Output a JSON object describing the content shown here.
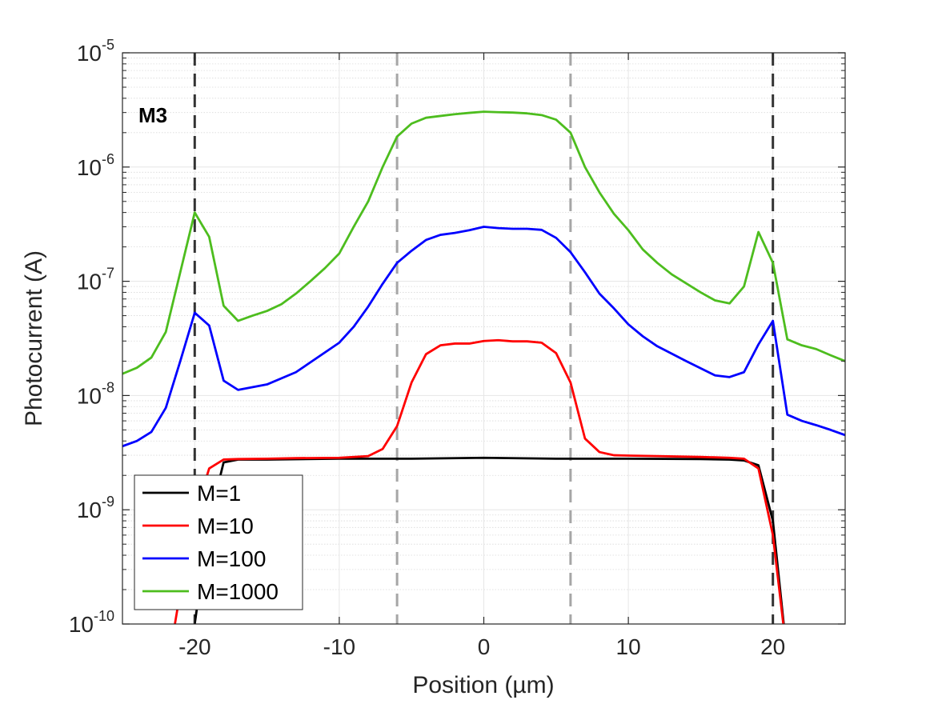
{
  "chart_data": {
    "type": "line",
    "panel_label": "M3",
    "xlabel": "Position (µm)",
    "ylabel": "Photocurrent (A)",
    "xlim": [
      -25,
      25
    ],
    "ylim": [
      1e-10,
      1e-05
    ],
    "yscale": "log",
    "grid": true,
    "legend_position": "bottom-left",
    "xticks": [
      -20,
      -10,
      0,
      10,
      20
    ],
    "xtick_labels": [
      "-20",
      "-10",
      "0",
      "10",
      "20"
    ],
    "yticks": [
      {
        "value": 1e-10,
        "base": "10",
        "exp": "-10"
      },
      {
        "value": 1e-09,
        "base": "10",
        "exp": "-9"
      },
      {
        "value": 1e-08,
        "base": "10",
        "exp": "-8"
      },
      {
        "value": 1e-07,
        "base": "10",
        "exp": "-7"
      },
      {
        "value": 1e-06,
        "base": "10",
        "exp": "-6"
      },
      {
        "value": 1e-05,
        "base": "10",
        "exp": "-5"
      }
    ],
    "vlines": [
      {
        "x": -20,
        "color": "#333333"
      },
      {
        "x": -6,
        "color": "#a6a6a6"
      },
      {
        "x": 6,
        "color": "#a6a6a6"
      },
      {
        "x": 20,
        "color": "#333333"
      }
    ],
    "series": [
      {
        "name": "M=1",
        "color": "#000000",
        "x": [
          -20.2,
          -20,
          -19,
          -18,
          -17,
          -15,
          -10,
          -5,
          0,
          5,
          10,
          15,
          17,
          18,
          19,
          20,
          21
        ],
        "y": [
          8e-11,
          1e-10,
          8e-10,
          2.6e-09,
          2.75e-09,
          2.75e-09,
          2.8e-09,
          2.8e-09,
          2.85e-09,
          2.8e-09,
          2.8e-09,
          2.78e-09,
          2.75e-09,
          2.7e-09,
          2.45e-09,
          8e-10,
          5e-11
        ]
      },
      {
        "name": "M=10",
        "color": "#ff0000",
        "x": [
          -21.5,
          -21,
          -20,
          -19,
          -18,
          -17,
          -15,
          -13,
          -10,
          -8,
          -7,
          -6,
          -5,
          -4,
          -3,
          -2,
          -1,
          0,
          1,
          2,
          3,
          4,
          5,
          6,
          7,
          8,
          9,
          10,
          12,
          15,
          17,
          18,
          19,
          20,
          21
        ],
        "y": [
          8e-11,
          1.9e-10,
          9e-10,
          2.3e-09,
          2.75e-09,
          2.78e-09,
          2.8e-09,
          2.83e-09,
          2.85e-09,
          2.95e-09,
          3.4e-09,
          5.4e-09,
          1.3e-08,
          2.3e-08,
          2.75e-08,
          2.85e-08,
          2.85e-08,
          3e-08,
          3.05e-08,
          2.98e-08,
          2.98e-08,
          2.9e-08,
          2.35e-08,
          1.3e-08,
          4.2e-09,
          3.2e-09,
          3e-09,
          2.98e-09,
          2.95e-09,
          2.9e-09,
          2.85e-09,
          2.8e-09,
          2.3e-09,
          6e-10,
          5e-11
        ]
      },
      {
        "name": "M=100",
        "color": "#0000ff",
        "x": [
          -25,
          -24,
          -23,
          -22,
          -21,
          -20,
          -19,
          -18,
          -17,
          -15,
          -13,
          -10,
          -9,
          -8,
          -7,
          -6,
          -5,
          -4,
          -3,
          -2,
          -1,
          0,
          1,
          2,
          3,
          4,
          5,
          6,
          7,
          8,
          9,
          10,
          11,
          12,
          14,
          16,
          17,
          18,
          19,
          20,
          21,
          22,
          23,
          24,
          25
        ],
        "y": [
          3.6e-09,
          4e-09,
          4.8e-09,
          7.8e-09,
          2e-08,
          5.3e-08,
          4.1e-08,
          1.35e-08,
          1.12e-08,
          1.25e-08,
          1.6e-08,
          2.9e-08,
          4e-08,
          6e-08,
          9.5e-08,
          1.45e-07,
          1.85e-07,
          2.3e-07,
          2.55e-07,
          2.65e-07,
          2.8e-07,
          3e-07,
          2.92e-07,
          2.88e-07,
          2.88e-07,
          2.82e-07,
          2.4e-07,
          1.8e-07,
          1.2e-07,
          7.8e-08,
          5.8e-08,
          4.2e-08,
          3.3e-08,
          2.7e-08,
          2e-08,
          1.5e-08,
          1.45e-08,
          1.6e-08,
          2.8e-08,
          4.5e-08,
          6.8e-09,
          6e-09,
          5.5e-09,
          5e-09,
          4.5e-09
        ]
      },
      {
        "name": "M=1000",
        "color": "#4dbd1e",
        "x": [
          -25,
          -24,
          -23,
          -22,
          -21,
          -20,
          -19,
          -18,
          -17,
          -16,
          -15,
          -14,
          -13,
          -12,
          -11,
          -10,
          -9,
          -8,
          -7,
          -6,
          -5,
          -4,
          -3,
          -2,
          -1,
          0,
          1,
          2,
          3,
          4,
          5,
          6,
          7,
          8,
          9,
          10,
          11,
          12,
          13,
          15,
          16,
          17,
          18,
          19,
          20,
          21,
          22,
          23,
          24,
          25
        ],
        "y": [
          1.55e-08,
          1.75e-08,
          2.15e-08,
          3.6e-08,
          1.2e-07,
          4e-07,
          2.45e-07,
          6.1e-08,
          4.5e-08,
          5e-08,
          5.5e-08,
          6.3e-08,
          7.8e-08,
          1e-07,
          1.3e-07,
          1.75e-07,
          3e-07,
          5e-07,
          1e-06,
          1.85e-06,
          2.4e-06,
          2.7e-06,
          2.8e-06,
          2.9e-06,
          2.98e-06,
          3.05e-06,
          3.02e-06,
          3e-06,
          2.95e-06,
          2.85e-06,
          2.6e-06,
          2e-06,
          1e-06,
          6e-07,
          3.9e-07,
          2.8e-07,
          1.9e-07,
          1.45e-07,
          1.15e-07,
          8e-08,
          6.8e-08,
          6.4e-08,
          9e-08,
          2.7e-07,
          1.45e-07,
          3.1e-08,
          2.75e-08,
          2.55e-08,
          2.25e-08,
          2e-08
        ]
      }
    ]
  }
}
